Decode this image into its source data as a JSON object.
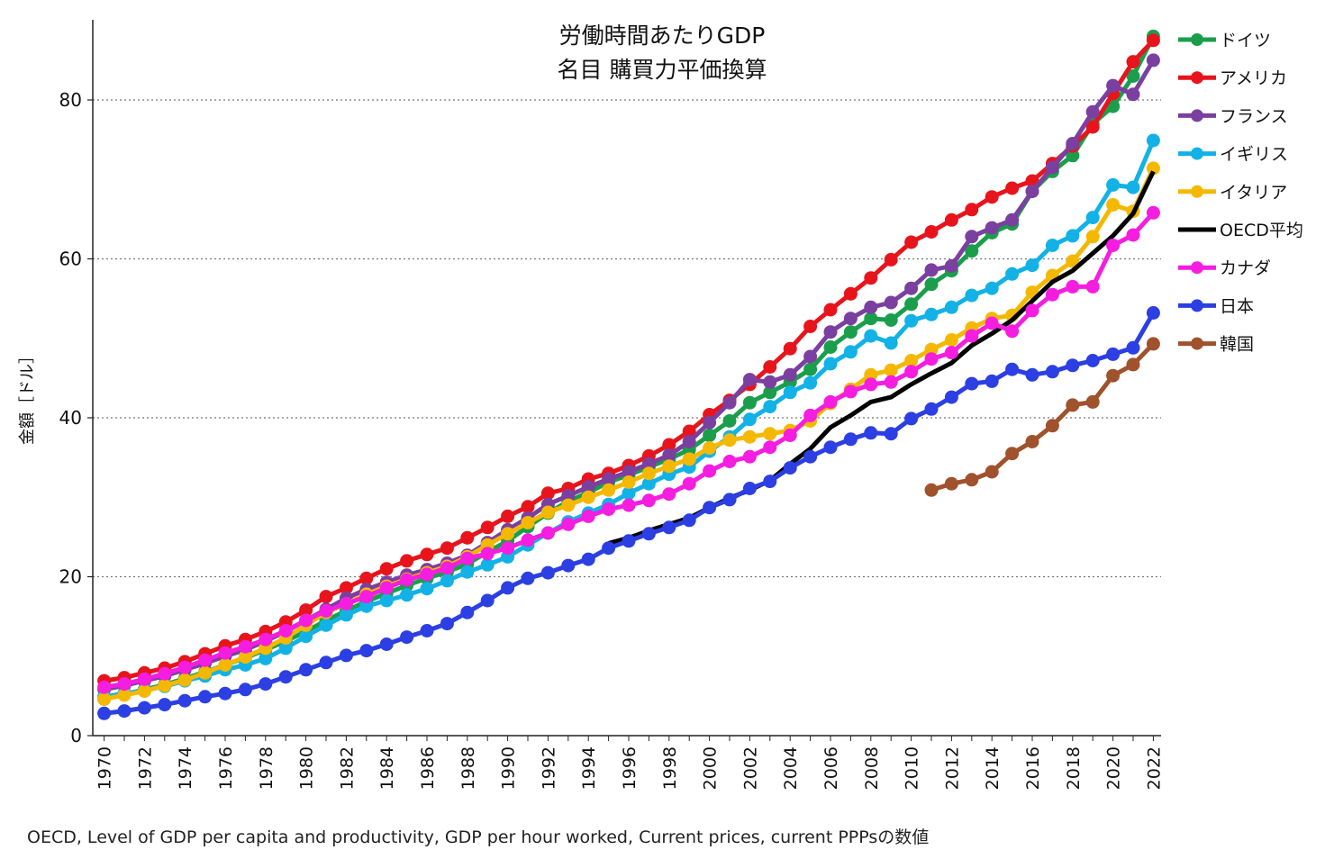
{
  "chart_data": {
    "type": "line",
    "title": [
      "労働時間あたりGDP",
      "名目 購買力平価換算"
    ],
    "ylabel": "金額［ドル］",
    "xlabel": "",
    "ylim": [
      0,
      90
    ],
    "yticks": [
      0,
      20,
      40,
      60,
      80
    ],
    "xlim": [
      1970,
      2022
    ],
    "xticks": [
      "1970",
      "1972",
      "1974",
      "1976",
      "1978",
      "1980",
      "1982",
      "1984",
      "1986",
      "1988",
      "1990",
      "1992",
      "1994",
      "1996",
      "1998",
      "2000",
      "2002",
      "2004",
      "2006",
      "2008",
      "2010",
      "2012",
      "2014",
      "2016",
      "2018",
      "2020",
      "2022"
    ],
    "grid": "horizontal dotted",
    "legend": "right",
    "source": "OECD, Level of GDP per capita and productivity, GDP per hour worked, Current prices, current PPPsの数値",
    "series": [
      {
        "name": "ドイツ",
        "color": "#1a9e4b",
        "start": 1970,
        "values": [
          4.6,
          5.2,
          5.8,
          6.4,
          7.2,
          8.0,
          8.9,
          9.8,
          10.8,
          11.9,
          13.1,
          14.5,
          15.7,
          16.9,
          17.9,
          18.9,
          19.8,
          20.6,
          21.6,
          23.1,
          24.5,
          26.3,
          28.0,
          29.5,
          30.6,
          31.9,
          32.8,
          33.8,
          34.8,
          36.0,
          37.8,
          39.6,
          41.9,
          43.2,
          44.5,
          46.1,
          48.9,
          50.8,
          52.5,
          52.3,
          54.3,
          56.8,
          58.5,
          61.0,
          63.3,
          64.4,
          68.5,
          71.0,
          73.0,
          77.0,
          79.2,
          83.0,
          88.0
        ]
      },
      {
        "name": "アメリカ",
        "color": "#e8141c",
        "start": 1970,
        "values": [
          6.9,
          7.3,
          7.9,
          8.5,
          9.3,
          10.3,
          11.3,
          12.1,
          13.1,
          14.3,
          15.8,
          17.5,
          18.6,
          19.8,
          21.0,
          22.0,
          22.8,
          23.6,
          24.9,
          26.2,
          27.6,
          28.8,
          30.5,
          31.1,
          32.3,
          33.0,
          34.0,
          35.2,
          36.6,
          38.3,
          40.4,
          42.2,
          44.2,
          46.4,
          48.7,
          51.5,
          53.6,
          55.6,
          57.6,
          59.9,
          62.1,
          63.4,
          64.9,
          66.2,
          67.8,
          68.9,
          69.8,
          72.0,
          74.2,
          76.6,
          80.8,
          84.8,
          87.5
        ]
      },
      {
        "name": "フランス",
        "color": "#7b3fa0",
        "start": 1970,
        "values": [
          5.8,
          6.3,
          6.9,
          7.5,
          8.3,
          9.1,
          10.0,
          10.8,
          11.9,
          13.1,
          14.5,
          15.9,
          17.3,
          18.4,
          19.3,
          20.2,
          20.9,
          21.7,
          22.7,
          24.3,
          25.9,
          27.4,
          29.1,
          30.2,
          31.3,
          32.3,
          33.2,
          34.2,
          35.3,
          37.0,
          39.4,
          41.9,
          44.8,
          44.5,
          45.4,
          47.7,
          50.8,
          52.5,
          53.9,
          54.5,
          56.3,
          58.6,
          59.1,
          62.8,
          63.9,
          64.9,
          68.5,
          71.5,
          74.5,
          78.5,
          81.8,
          80.7,
          85.0
        ]
      },
      {
        "name": "イギリス",
        "color": "#12b2e6",
        "start": 1970,
        "values": [
          4.9,
          5.3,
          5.7,
          6.2,
          6.9,
          7.5,
          8.3,
          8.9,
          9.7,
          11.0,
          12.5,
          13.9,
          15.2,
          16.3,
          17.0,
          17.7,
          18.5,
          19.5,
          20.6,
          21.5,
          22.5,
          24.0,
          25.5,
          26.9,
          28.0,
          29.1,
          30.5,
          31.7,
          32.9,
          33.8,
          35.8,
          37.6,
          39.8,
          41.4,
          43.2,
          44.4,
          46.8,
          48.3,
          50.3,
          49.4,
          52.2,
          53.0,
          53.9,
          55.4,
          56.3,
          58.1,
          59.2,
          61.7,
          62.9,
          65.2,
          69.3,
          69.0,
          74.9
        ]
      },
      {
        "name": "イタリア",
        "color": "#f5b800",
        "start": 1970,
        "values": [
          4.6,
          5.1,
          5.6,
          6.3,
          7.0,
          7.9,
          8.9,
          9.9,
          11.0,
          12.3,
          13.9,
          15.5,
          16.6,
          17.8,
          18.8,
          19.7,
          20.5,
          21.3,
          22.5,
          24.0,
          25.4,
          26.8,
          28.1,
          29.0,
          30.0,
          30.9,
          31.9,
          33.0,
          33.9,
          34.8,
          36.2,
          37.2,
          37.6,
          38.0,
          38.4,
          39.6,
          41.8,
          43.6,
          45.4,
          46.0,
          47.2,
          48.6,
          49.8,
          51.3,
          52.5,
          52.9,
          55.8,
          57.9,
          59.7,
          62.8,
          66.8,
          66.0,
          71.4
        ]
      },
      {
        "name": "OECD平均",
        "color": "#000000",
        "start": 1995,
        "values": [
          24.2,
          24.9,
          25.8,
          26.6,
          27.4,
          28.7,
          29.9,
          30.9,
          32.1,
          34.2,
          36.1,
          38.8,
          40.3,
          42.0,
          42.6,
          44.2,
          45.6,
          46.9,
          49.1,
          50.6,
          52.3,
          54.7,
          57.1,
          58.5,
          60.7,
          62.9,
          65.7,
          71.0
        ]
      },
      {
        "name": "カナダ",
        "color": "#f51de0",
        "start": 1970,
        "values": [
          6.1,
          6.5,
          7.1,
          7.8,
          8.6,
          9.5,
          10.4,
          11.2,
          12.1,
          13.2,
          14.5,
          15.7,
          16.6,
          17.5,
          18.6,
          19.6,
          20.3,
          21.1,
          22.3,
          22.9,
          23.6,
          24.6,
          25.5,
          26.6,
          27.6,
          28.5,
          29.0,
          29.6,
          30.4,
          31.7,
          33.3,
          34.5,
          35.1,
          36.3,
          37.8,
          40.3,
          42.0,
          43.3,
          44.2,
          44.5,
          45.8,
          47.4,
          48.2,
          50.3,
          51.9,
          50.9,
          53.5,
          55.5,
          56.5,
          56.5,
          61.7,
          63.0,
          65.8
        ]
      },
      {
        "name": "日本",
        "color": "#2b3fe3",
        "start": 1970,
        "values": [
          2.8,
          3.1,
          3.5,
          3.9,
          4.4,
          4.9,
          5.3,
          5.8,
          6.5,
          7.4,
          8.3,
          9.2,
          10.1,
          10.7,
          11.5,
          12.4,
          13.2,
          14.1,
          15.5,
          17.0,
          18.6,
          19.8,
          20.5,
          21.4,
          22.2,
          23.6,
          24.5,
          25.4,
          26.2,
          27.1,
          28.7,
          29.7,
          31.1,
          32.0,
          33.7,
          35.1,
          36.3,
          37.3,
          38.1,
          38.0,
          39.9,
          41.1,
          42.6,
          44.3,
          44.6,
          46.1,
          45.4,
          45.8,
          46.6,
          47.2,
          48.0,
          48.8,
          53.2
        ]
      },
      {
        "name": "韓国",
        "color": "#a0522d",
        "start": 2011,
        "values": [
          30.9,
          31.7,
          32.2,
          33.2,
          35.5,
          37.0,
          39.0,
          41.6,
          42.0,
          45.3,
          46.7,
          49.3
        ]
      }
    ]
  }
}
